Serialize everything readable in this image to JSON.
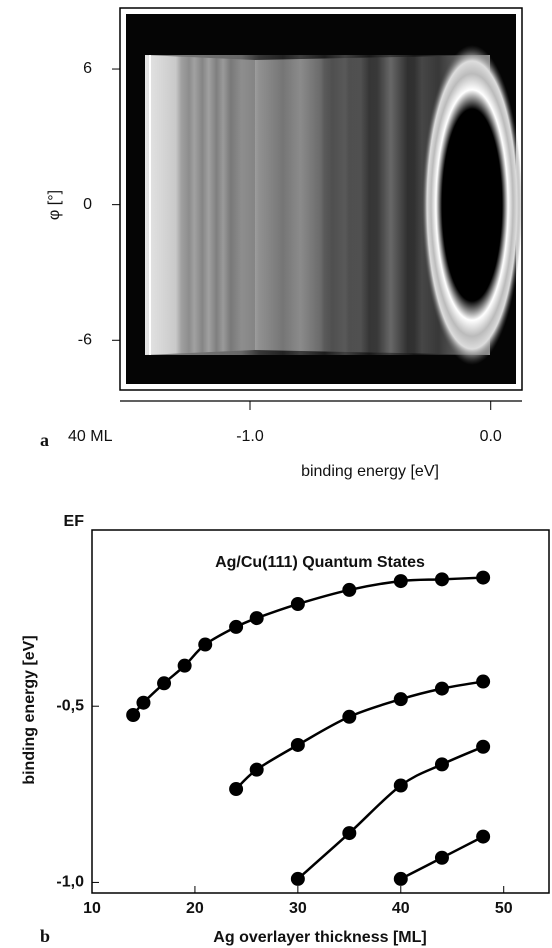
{
  "chart_data": [
    {
      "type": "image",
      "panel_label": "a",
      "annotation": "40 ML",
      "xlabel": "binding energy [eV]",
      "ylabel": "φ [°]",
      "xlim": [
        -1.54,
        0.13
      ],
      "xticks": [
        {
          "value": -1,
          "label": "-1.0"
        },
        {
          "value": 0,
          "label": "0.0"
        }
      ],
      "ylim": [
        -8.2,
        8.7
      ],
      "yticks": [
        6,
        0,
        -6
      ]
    },
    {
      "type": "line",
      "panel_label": "b",
      "title": "Ag/Cu(111) Quantum States",
      "xlabel": "Ag overlayer thickness [ML]",
      "ylabel": "binding energy [eV]",
      "x": [
        14,
        15,
        17,
        19,
        21,
        24,
        26,
        30,
        35,
        40,
        44,
        48
      ],
      "series": [
        {
          "color": "#000000",
          "values": [
            -0.525,
            -0.49,
            -0.435,
            -0.385,
            -0.325,
            -0.275,
            -0.25,
            -0.21,
            -0.17,
            -0.145,
            -0.14,
            -0.135
          ]
        },
        {
          "color": "#000000",
          "values": [
            null,
            null,
            null,
            null,
            null,
            -0.735,
            -0.68,
            -0.61,
            -0.53,
            -0.48,
            -0.45,
            -0.43
          ]
        },
        {
          "color": "#000000",
          "values": [
            null,
            null,
            null,
            null,
            null,
            null,
            null,
            -0.99,
            -0.86,
            -0.725,
            -0.665,
            -0.615
          ]
        },
        {
          "color": "#000000",
          "values": [
            null,
            null,
            null,
            null,
            null,
            null,
            null,
            null,
            null,
            -0.99,
            -0.93,
            -0.87
          ]
        }
      ],
      "xlim": [
        10,
        54.4
      ],
      "xticks": [
        10,
        20,
        30,
        40,
        50
      ],
      "ylim": [
        -1.03,
        0
      ],
      "yticks": [
        {
          "value": 0,
          "label": "EF"
        },
        {
          "value": -0.5,
          "label": "-0,5"
        },
        {
          "value": -1,
          "label": "-1,0"
        }
      ]
    }
  ]
}
